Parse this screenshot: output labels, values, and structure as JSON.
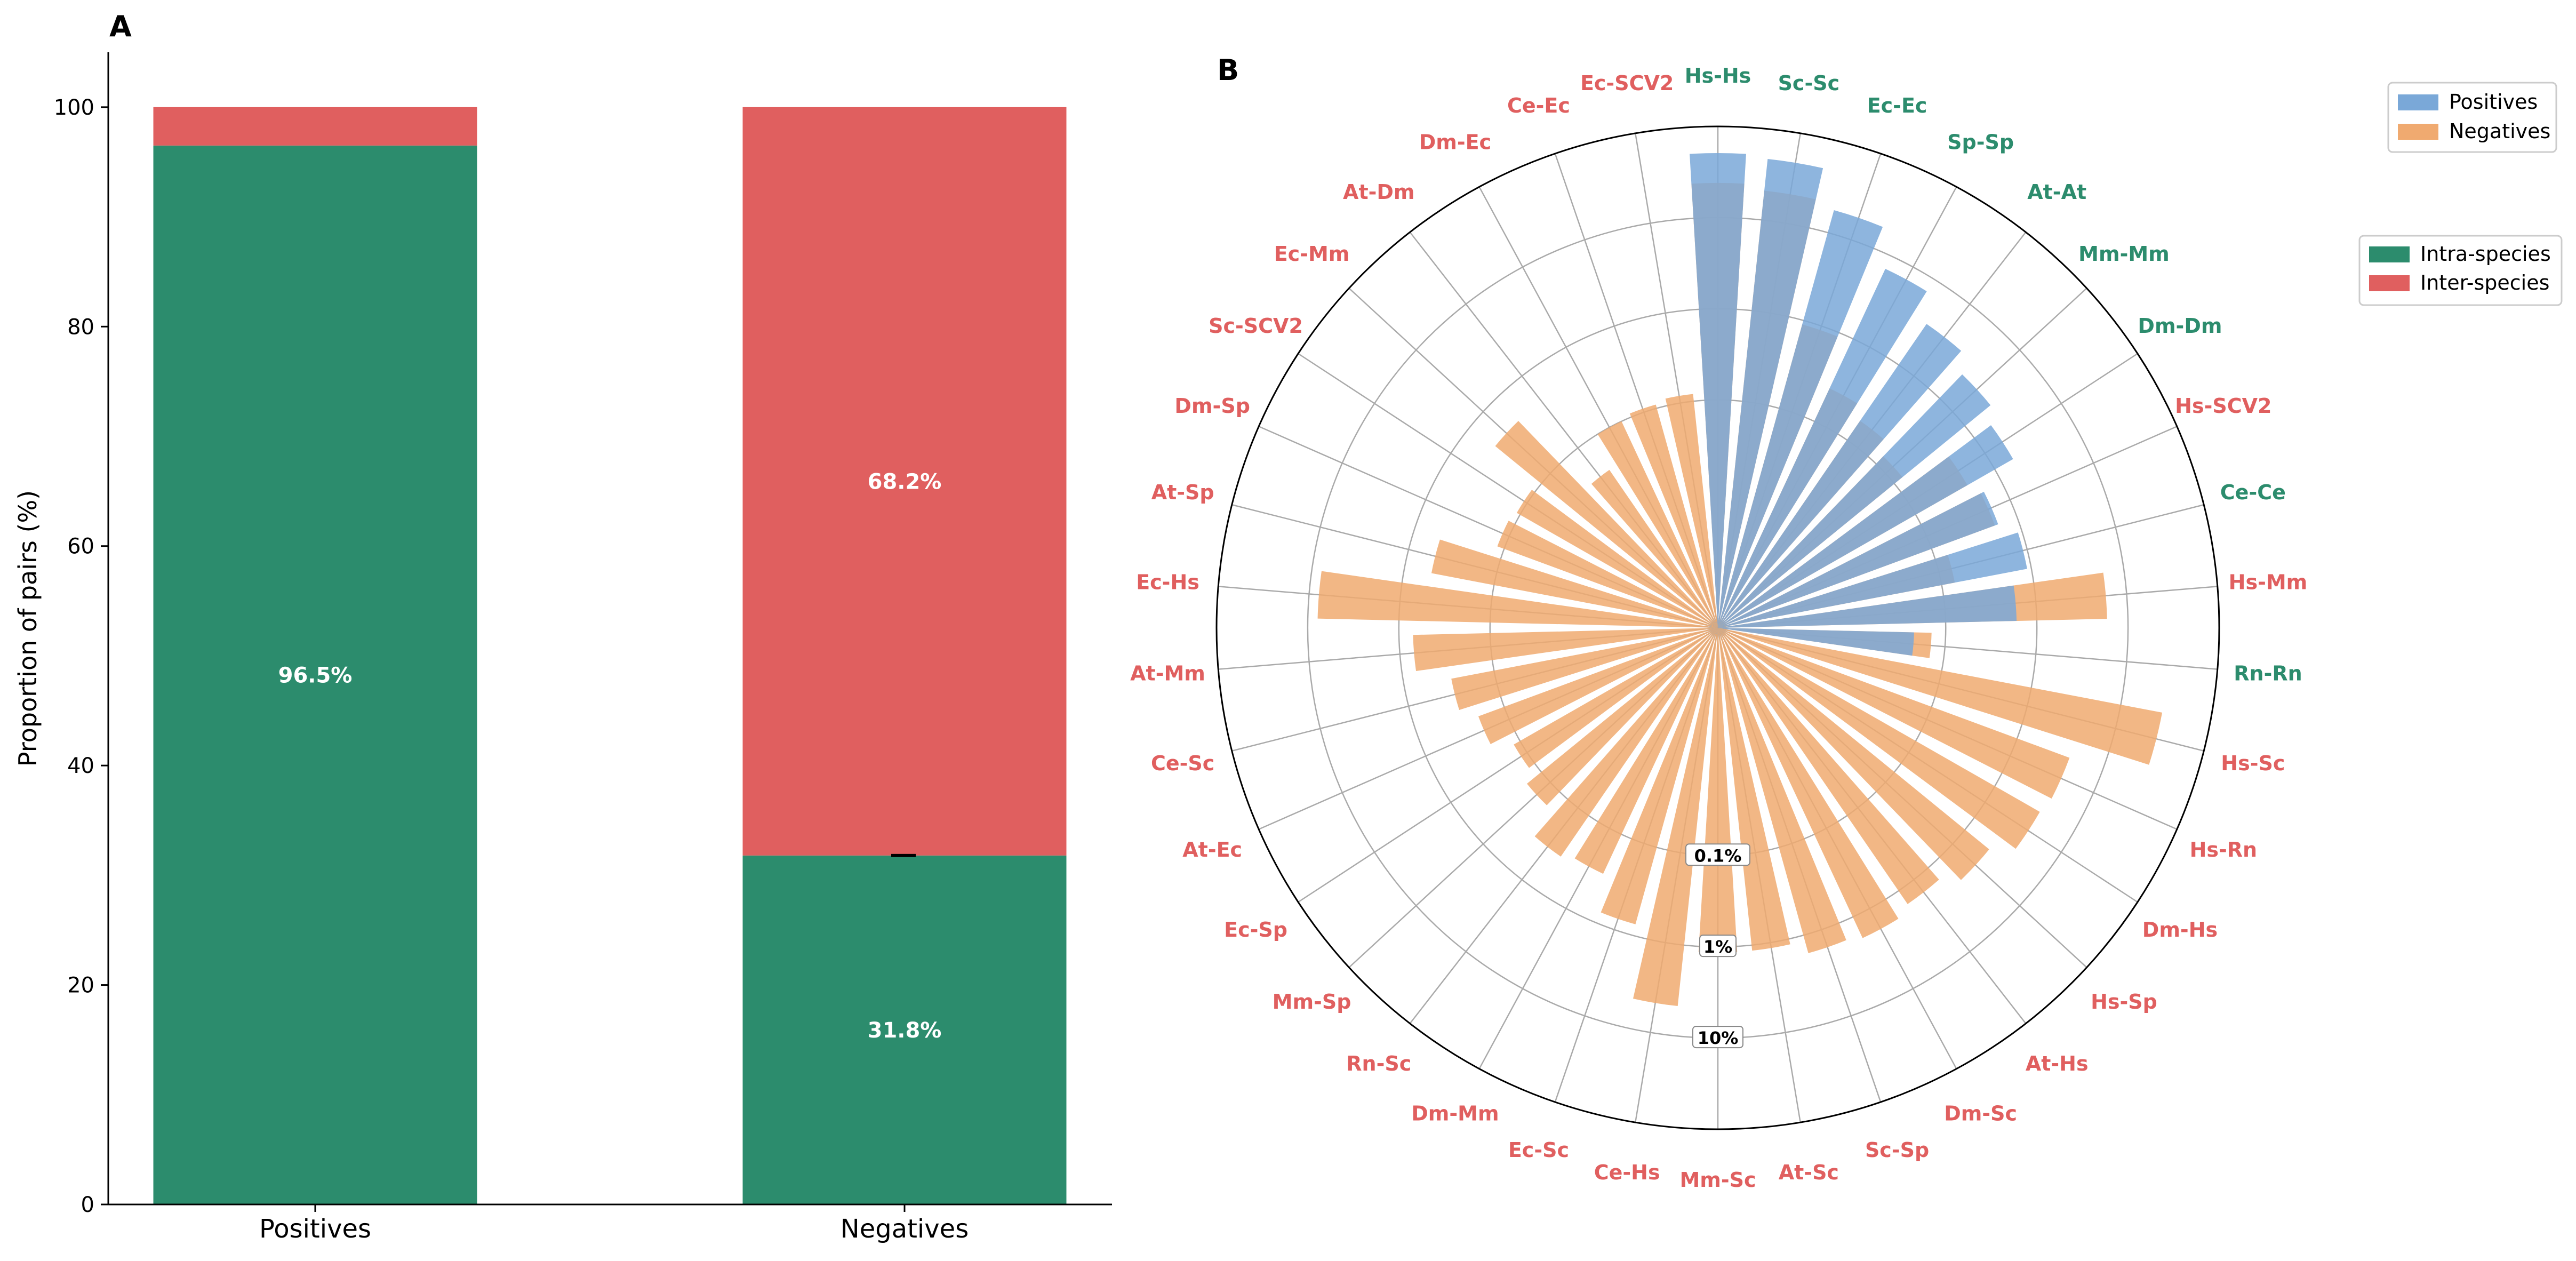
{
  "colors": {
    "intra": "#2c8c6d",
    "inter": "#e05f5f",
    "positives": "#7aa8d8",
    "negatives": "#f0aa70",
    "axis": "#000000",
    "grid": "#aaaaaa"
  },
  "chart_data": [
    {
      "panel": "A",
      "type": "bar",
      "stacked": true,
      "categories": [
        "Positives",
        "Negatives"
      ],
      "series": [
        {
          "name": "Intra-species",
          "values": [
            96.5,
            31.8
          ],
          "labels": [
            "96.5%",
            "31.8%"
          ]
        },
        {
          "name": "Inter-species",
          "values": [
            3.5,
            68.2
          ],
          "labels": [
            "",
            "68.2%"
          ]
        }
      ],
      "ylabel": "Proportion of pairs (%)",
      "ylim": [
        0,
        105
      ],
      "yticks": [
        0,
        20,
        40,
        60,
        80,
        100
      ],
      "legend": {
        "position": "right",
        "entries": [
          "Intra-species",
          "Inter-species"
        ]
      }
    },
    {
      "panel": "B",
      "type": "bar",
      "polar": true,
      "radial_scale": "log",
      "radial_tick_labels": [
        "0.1%",
        "1%",
        "10%"
      ],
      "categories": [
        "Hs-Hs",
        "Sc-Sc",
        "Ec-Ec",
        "Sp-Sp",
        "At-At",
        "Mm-Mm",
        "Dm-Dm",
        "Hs-SCV2",
        "Ce-Ce",
        "Hs-Mm",
        "Rn-Rn",
        "Hs-Sc",
        "Hs-Rn",
        "Dm-Hs",
        "Hs-Sp",
        "At-Hs",
        "Dm-Sc",
        "Sc-Sp",
        "At-Sc",
        "Mm-Sc",
        "Ce-Hs",
        "Ec-Sc",
        "Dm-Mm",
        "Rn-Sc",
        "Mm-Sp",
        "Ec-Sp",
        "At-Ec",
        "Ce-Sc",
        "At-Mm",
        "Ec-Hs",
        "At-Sp",
        "Dm-Sp",
        "Sc-SCV2",
        "Ec-Mm",
        "At-Dm",
        "Dm-Ec",
        "Ce-Ec",
        "Ec-SCV2"
      ],
      "category_types": [
        "intra",
        "intra",
        "intra",
        "intra",
        "intra",
        "intra",
        "intra",
        "inter",
        "intra",
        "inter",
        "intra",
        "inter",
        "inter",
        "inter",
        "inter",
        "inter",
        "inter",
        "inter",
        "inter",
        "inter",
        "inter",
        "inter",
        "inter",
        "inter",
        "inter",
        "inter",
        "inter",
        "inter",
        "inter",
        "inter",
        "inter",
        "inter",
        "inter",
        "inter",
        "inter",
        "inter",
        "inter",
        "inter"
      ],
      "series": [
        {
          "name": "Positives",
          "values": [
            51,
            47,
            18,
            7,
            3.5,
            2.3,
            1.7,
            0.6,
            0.9,
            0.6,
            0.045,
            0,
            0,
            0,
            0,
            0,
            0,
            0,
            0,
            0,
            0,
            0,
            0,
            0,
            0,
            0,
            0,
            0,
            0,
            0,
            0,
            0,
            0,
            0,
            0,
            0,
            0,
            0
          ]
        },
        {
          "name": "Negatives",
          "values": [
            24,
            21,
            0.9,
            0.25,
            0.18,
            0.13,
            0.45,
            0.55,
            0.14,
            5.9,
            0.07,
            29,
            4.1,
            3.7,
            2.2,
            1.5,
            1.8,
            1.6,
            1.15,
            1.15,
            4.7,
            0.75,
            0.3,
            0.35,
            0.16,
            0.12,
            0.2,
            0.3,
            0.7,
            7.8,
            0.5,
            0.12,
            0.11,
            0.45,
            0.04,
            0.1,
            0.11,
            0.12
          ]
        }
      ],
      "legend": {
        "position": "top-right",
        "entries": [
          "Positives",
          "Negatives"
        ]
      }
    }
  ]
}
